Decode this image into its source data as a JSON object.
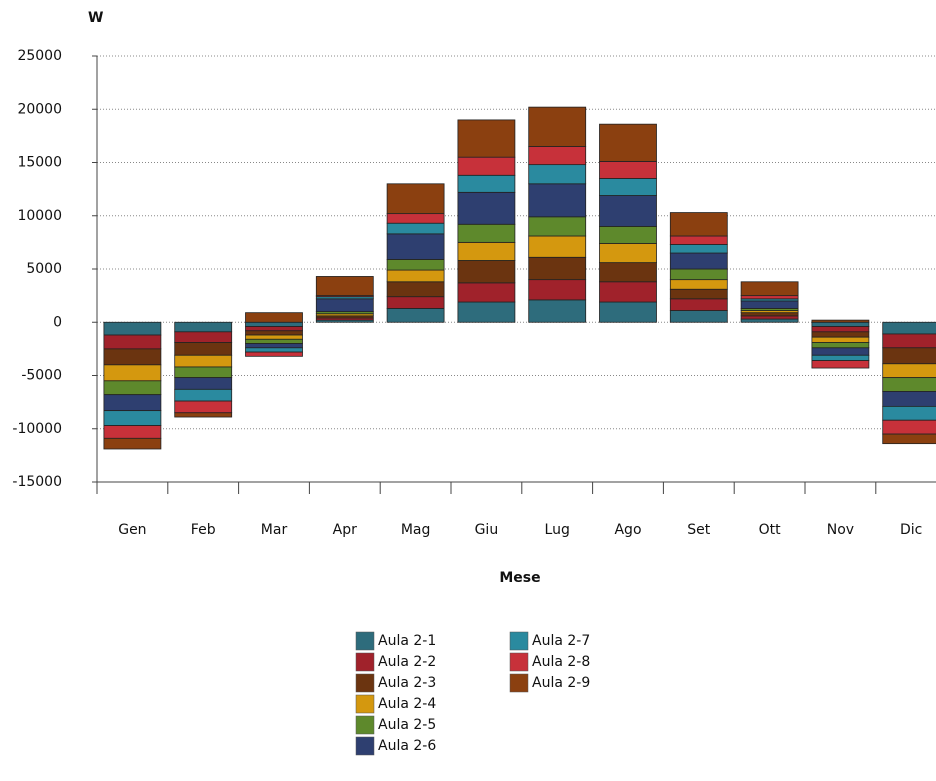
{
  "chart_data": {
    "type": "stacked-bar",
    "y_label": "W",
    "x_label": "Mese",
    "categories": [
      "Gen",
      "Feb",
      "Mar",
      "Apr",
      "Mag",
      "Giu",
      "Lug",
      "Ago",
      "Set",
      "Ott",
      "Nov",
      "Dic"
    ],
    "ylim": [
      -15000,
      25000
    ],
    "yticks": [
      -15000,
      -10000,
      -5000,
      0,
      5000,
      10000,
      15000,
      20000,
      25000
    ],
    "grid": true,
    "series": [
      {
        "name": "Aula 2-1",
        "color": "#2e6c7c",
        "values": [
          -1200,
          -900,
          -400,
          200,
          1300,
          1900,
          2100,
          1900,
          1100,
          300,
          -400,
          -1100
        ]
      },
      {
        "name": "Aula 2-2",
        "color": "#a0222b",
        "values": [
          -1300,
          -1000,
          -400,
          200,
          1100,
          1800,
          1900,
          1900,
          1100,
          300,
          -500,
          -1300
        ]
      },
      {
        "name": "Aula 2-3",
        "color": "#6b3410",
        "values": [
          -1500,
          -1200,
          -400,
          200,
          1400,
          2100,
          2100,
          1800,
          900,
          300,
          -500,
          -1500
        ]
      },
      {
        "name": "Aula 2-4",
        "color": "#d4980f",
        "values": [
          -1500,
          -1100,
          -400,
          200,
          1100,
          1700,
          2000,
          1800,
          900,
          200,
          -500,
          -1300
        ]
      },
      {
        "name": "Aula 2-5",
        "color": "#5e892c",
        "values": [
          -1300,
          -1000,
          -400,
          200,
          1000,
          1700,
          1800,
          1600,
          1000,
          200,
          -500,
          -1300
        ]
      },
      {
        "name": "Aula 2-6",
        "color": "#2e3f70",
        "values": [
          -1500,
          -1100,
          -400,
          1200,
          2400,
          3000,
          3100,
          2900,
          1500,
          700,
          -700,
          -1400
        ]
      },
      {
        "name": "Aula 2-7",
        "color": "#2a8a9f",
        "values": [
          -1400,
          -1100,
          -400,
          200,
          1000,
          1600,
          1800,
          1600,
          800,
          200,
          -500,
          -1300
        ]
      },
      {
        "name": "Aula 2-8",
        "color": "#c7313a",
        "values": [
          -1200,
          -1100,
          -400,
          100,
          900,
          1700,
          1700,
          1600,
          800,
          300,
          -700,
          -1300
        ]
      },
      {
        "name": "Aula 2-9",
        "color": "#8b4010",
        "values": [
          -1000,
          -400,
          900,
          1800,
          2800,
          3500,
          3700,
          3500,
          2200,
          1300,
          200,
          -900
        ]
      }
    ]
  }
}
